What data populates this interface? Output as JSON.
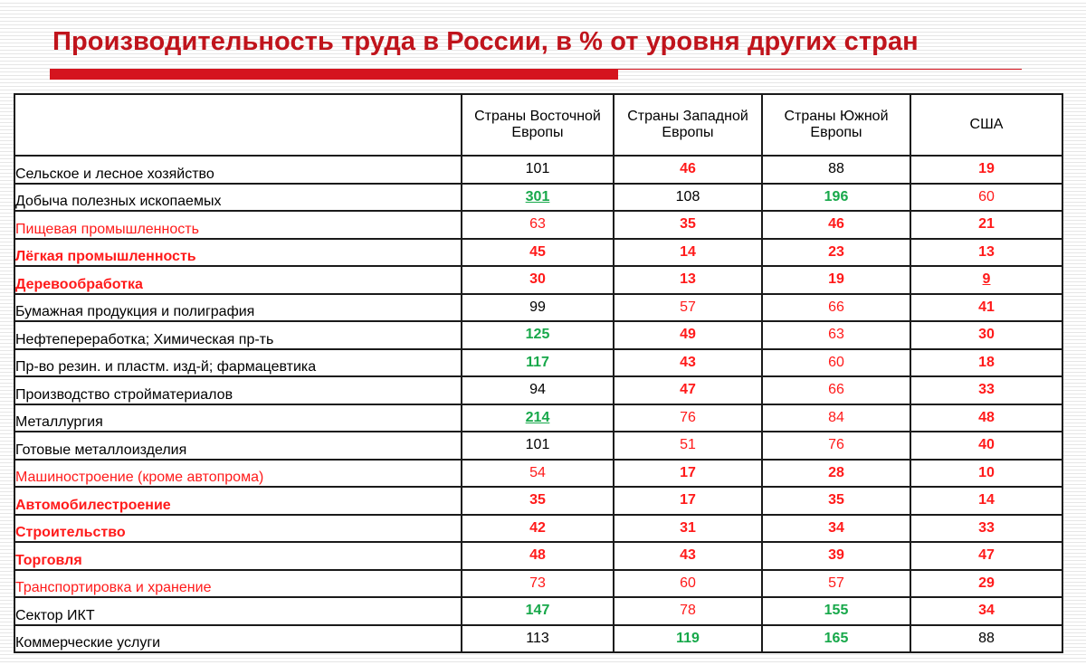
{
  "title": "Производительность труда в России, в % от уровня других стран",
  "colors": {
    "title": "#c0141c",
    "red": "#ff1a1a",
    "green": "#17a84a",
    "black": "#000000"
  },
  "columns": [
    "Страны Восточной Европы",
    "Страны Западной Европы",
    "Страны Южной Европы",
    "США"
  ],
  "rows": [
    {
      "label": "Сельское и лесное хозяйство",
      "label_style": "black",
      "values": [
        {
          "v": "101",
          "s": "black"
        },
        {
          "v": "46",
          "s": "red b"
        },
        {
          "v": "88",
          "s": "black"
        },
        {
          "v": "19",
          "s": "red b"
        }
      ]
    },
    {
      "label": "Добыча полезных ископаемых",
      "label_style": "black",
      "values": [
        {
          "v": "301",
          "s": "green b u"
        },
        {
          "v": "108",
          "s": "black"
        },
        {
          "v": "196",
          "s": "green b"
        },
        {
          "v": "60",
          "s": "red"
        }
      ]
    },
    {
      "label": "Пищевая промышленность",
      "label_style": "red",
      "values": [
        {
          "v": "63",
          "s": "red"
        },
        {
          "v": "35",
          "s": "red b"
        },
        {
          "v": "46",
          "s": "red b"
        },
        {
          "v": "21",
          "s": "red b"
        }
      ]
    },
    {
      "label": "Лёгкая промышленность",
      "label_style": "red b",
      "values": [
        {
          "v": "45",
          "s": "red b"
        },
        {
          "v": "14",
          "s": "red b"
        },
        {
          "v": "23",
          "s": "red b"
        },
        {
          "v": "13",
          "s": "red b"
        }
      ]
    },
    {
      "label": "Деревообработка",
      "label_style": "red b",
      "values": [
        {
          "v": "30",
          "s": "red b"
        },
        {
          "v": "13",
          "s": "red b"
        },
        {
          "v": "19",
          "s": "red b"
        },
        {
          "v": "9",
          "s": "red b u"
        }
      ]
    },
    {
      "label": "Бумажная продукция и полиграфия",
      "label_style": "black",
      "values": [
        {
          "v": "99",
          "s": "black"
        },
        {
          "v": "57",
          "s": "red"
        },
        {
          "v": "66",
          "s": "red"
        },
        {
          "v": "41",
          "s": "red b"
        }
      ]
    },
    {
      "label": "Нефтепереработка; Химическая пр-ть",
      "label_style": "black",
      "values": [
        {
          "v": "125",
          "s": "green b"
        },
        {
          "v": "49",
          "s": "red b"
        },
        {
          "v": "63",
          "s": "red"
        },
        {
          "v": "30",
          "s": "red b"
        }
      ]
    },
    {
      "label": "Пр-во резин. и пластм. изд-й; фармацевтика",
      "label_style": "black",
      "values": [
        {
          "v": "117",
          "s": "green b"
        },
        {
          "v": "43",
          "s": "red b"
        },
        {
          "v": "60",
          "s": "red"
        },
        {
          "v": "18",
          "s": "red b"
        }
      ]
    },
    {
      "label": "Производство стройматериалов",
      "label_style": "black",
      "values": [
        {
          "v": "94",
          "s": "black"
        },
        {
          "v": "47",
          "s": "red b"
        },
        {
          "v": "66",
          "s": "red"
        },
        {
          "v": "33",
          "s": "red b"
        }
      ]
    },
    {
      "label": "Металлургия",
      "label_style": "black",
      "values": [
        {
          "v": "214",
          "s": "green b u"
        },
        {
          "v": "76",
          "s": "red"
        },
        {
          "v": "84",
          "s": "red"
        },
        {
          "v": "48",
          "s": "red b"
        }
      ]
    },
    {
      "label": "Готовые металлоизделия",
      "label_style": "black",
      "values": [
        {
          "v": "101",
          "s": "black"
        },
        {
          "v": "51",
          "s": "red"
        },
        {
          "v": "76",
          "s": "red"
        },
        {
          "v": "40",
          "s": "red b"
        }
      ]
    },
    {
      "label": "Машиностроение (кроме автопрома)",
      "label_style": "red",
      "values": [
        {
          "v": "54",
          "s": "red"
        },
        {
          "v": "17",
          "s": "red b"
        },
        {
          "v": "28",
          "s": "red b"
        },
        {
          "v": "10",
          "s": "red b"
        }
      ]
    },
    {
      "label": "Автомобилестроение",
      "label_style": "red b",
      "values": [
        {
          "v": "35",
          "s": "red b"
        },
        {
          "v": "17",
          "s": "red b"
        },
        {
          "v": "35",
          "s": "red b"
        },
        {
          "v": "14",
          "s": "red b"
        }
      ]
    },
    {
      "label": "Строительство",
      "label_style": "red b",
      "values": [
        {
          "v": "42",
          "s": "red b"
        },
        {
          "v": "31",
          "s": "red b"
        },
        {
          "v": "34",
          "s": "red b"
        },
        {
          "v": "33",
          "s": "red b"
        }
      ]
    },
    {
      "label": "Торговля",
      "label_style": "red b",
      "values": [
        {
          "v": "48",
          "s": "red b"
        },
        {
          "v": "43",
          "s": "red b"
        },
        {
          "v": "39",
          "s": "red b"
        },
        {
          "v": "47",
          "s": "red b"
        }
      ]
    },
    {
      "label": "Транспортировка и хранение",
      "label_style": "red",
      "values": [
        {
          "v": "73",
          "s": "red"
        },
        {
          "v": "60",
          "s": "red"
        },
        {
          "v": "57",
          "s": "red"
        },
        {
          "v": "29",
          "s": "red b"
        }
      ]
    },
    {
      "label": "Сектор ИКТ",
      "label_style": "black",
      "values": [
        {
          "v": "147",
          "s": "green b"
        },
        {
          "v": "78",
          "s": "red"
        },
        {
          "v": "155",
          "s": "green b"
        },
        {
          "v": "34",
          "s": "red b"
        }
      ]
    },
    {
      "label": "Коммерческие услуги",
      "label_style": "black",
      "values": [
        {
          "v": "113",
          "s": "black"
        },
        {
          "v": "119",
          "s": "green b"
        },
        {
          "v": "165",
          "s": "green b"
        },
        {
          "v": "88",
          "s": "black"
        }
      ]
    }
  ]
}
